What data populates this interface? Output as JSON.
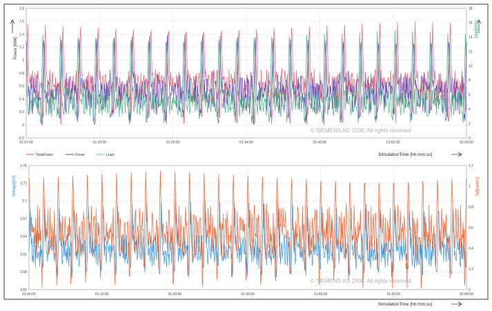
{
  "chart_data": [
    {
      "type": "line",
      "title": "",
      "ylabel": "Power [MW]",
      "y2label": "Load[MW]",
      "xlabel": "SimulationTime [hh:mm:ss]",
      "xticks": [
        "01:07:00",
        "01:16:00",
        "01:25:00",
        "01:34:00",
        "01:43:00",
        "01:52:00",
        "02:00:00"
      ],
      "ylim": [
        -0.2,
        1.8
      ],
      "yticks": [
        "-0.2",
        "0",
        "0.2",
        "0.4",
        "0.6",
        "0.8",
        "1",
        "1.2",
        "1.4",
        "1.6",
        "1.8"
      ],
      "y2lim": [
        0,
        18
      ],
      "y2ticks": [
        "0",
        "2",
        "4",
        "6",
        "8",
        "10",
        "12",
        "14",
        "16",
        "18"
      ],
      "grid": true,
      "legend_position": "bottom-left",
      "watermark": "© SIEMENS AG 2008. All rights reserved",
      "series": [
        {
          "name": "TotalPower",
          "color": "#e05060",
          "axis": "left",
          "waveform": {
            "cycles": 25,
            "baseline": 0.6,
            "peak": 1.6,
            "trough": 0.0,
            "noise": 0.18
          }
        },
        {
          "name": "Power",
          "color": "#4a3aa8",
          "axis": "left",
          "waveform": {
            "cycles": 25,
            "baseline": 0.5,
            "peak": 1.4,
            "trough": 0.0,
            "noise": 0.22
          }
        },
        {
          "name": "Load",
          "color": "#3aa07a",
          "axis": "right",
          "waveform": {
            "cycles": 25,
            "baseline": 5.0,
            "peak": 15.0,
            "trough": 2.0,
            "noise": 1.4
          }
        }
      ]
    },
    {
      "type": "line",
      "title": "",
      "ylabel": "Voltage[kV]",
      "y2label": "Current[A]",
      "xlabel": "SimulationTime [hh:mm:ss]",
      "xticks": [
        "01:00:00",
        "01:10:00",
        "01:20:00",
        "01:30:00",
        "01:40:00",
        "01:50:00",
        "02:00:00"
      ],
      "ylim": [
        3.55,
        3.76
      ],
      "yticks": [
        "3.55",
        "3.58",
        "3.61",
        "3.64",
        "3.67",
        "3.7",
        "3.73",
        "3.76"
      ],
      "y2lim": [
        0,
        1.2
      ],
      "y2ticks": [
        "0",
        "0.2",
        "0.4",
        "0.6",
        "0.8",
        "1",
        "1.2"
      ],
      "grid": true,
      "watermark": "© SIEMENS AG 2008. All rights reserved",
      "series": [
        {
          "name": "Voltage",
          "color": "#1e88d4",
          "axis": "left",
          "waveform": {
            "cycles": 30,
            "baseline": 3.615,
            "peak": 3.7,
            "trough": 3.57,
            "noise": 0.02
          }
        },
        {
          "name": "Current",
          "color": "#e0501e",
          "axis": "right",
          "waveform": {
            "cycles": 30,
            "baseline": 0.55,
            "peak": 1.15,
            "trough": 0.0,
            "noise": 0.18
          }
        }
      ]
    }
  ]
}
